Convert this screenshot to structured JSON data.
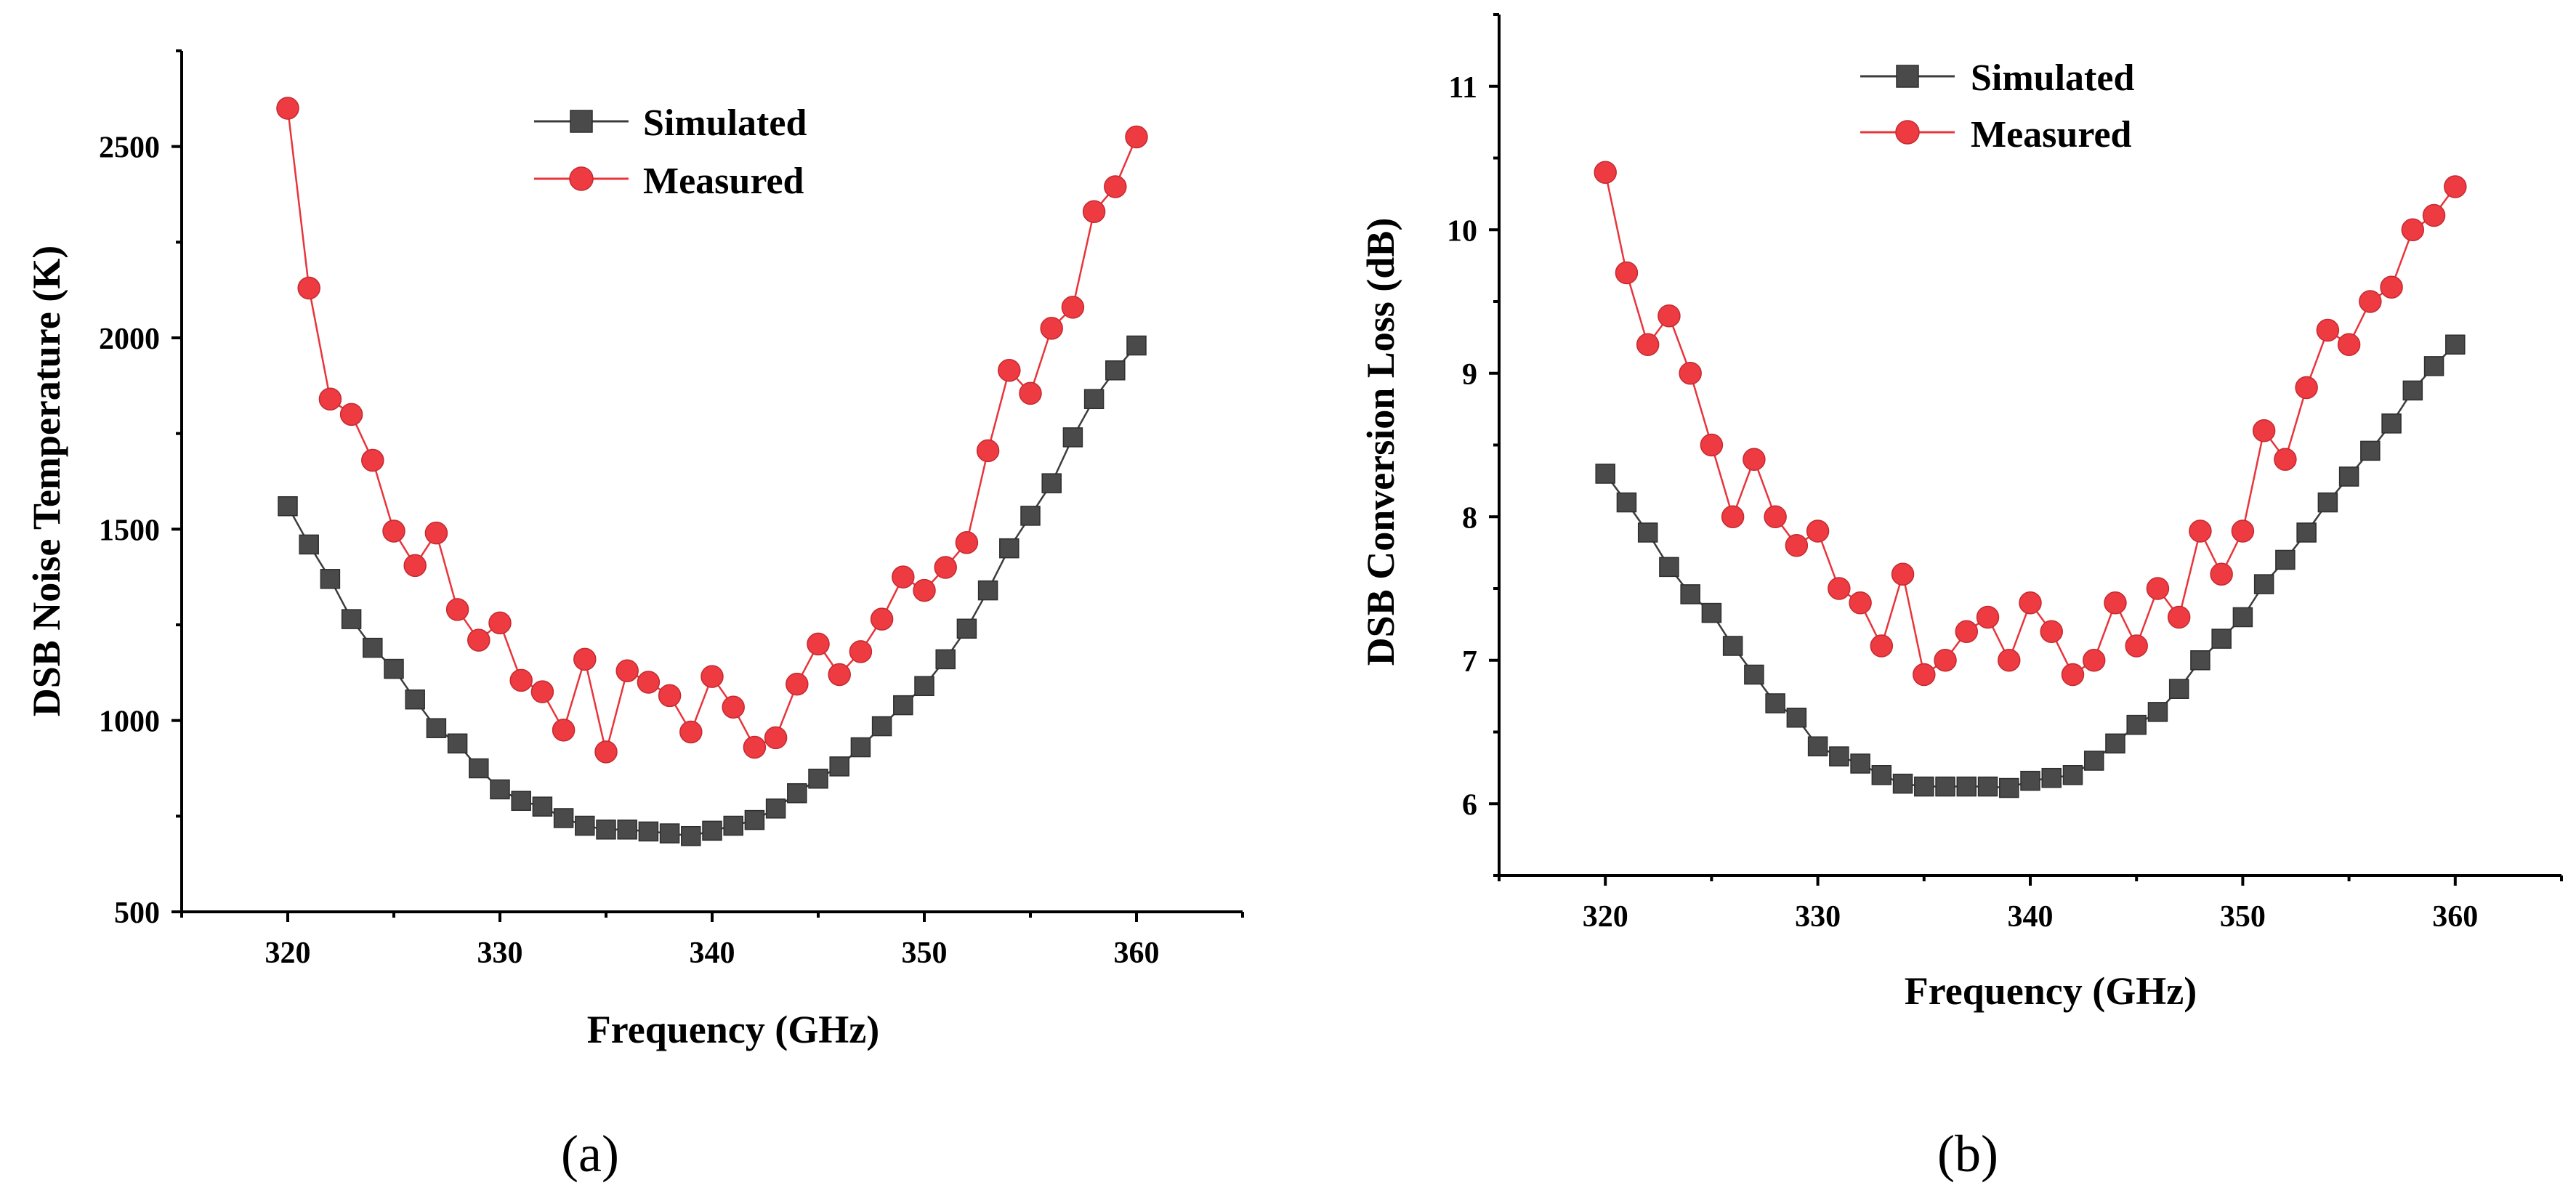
{
  "colors": {
    "simulated": "#4a4a4a",
    "measured": "#ee3b42"
  },
  "chart_data": [
    {
      "type": "line",
      "panel_label": "(a)",
      "xlabel": "Frequency (GHz)",
      "ylabel": "DSB Noise Temperature (K)",
      "xlim": [
        315,
        365
      ],
      "ylim": [
        500,
        2750
      ],
      "xticks": [
        320,
        330,
        340,
        350,
        360
      ],
      "yticks": [
        500,
        1000,
        1500,
        2000,
        2500
      ],
      "legend_position": "top-center",
      "x": [
        320,
        321,
        322,
        323,
        324,
        325,
        326,
        327,
        328,
        329,
        330,
        331,
        332,
        333,
        334,
        335,
        336,
        337,
        338,
        339,
        340,
        341,
        342,
        343,
        344,
        345,
        346,
        347,
        348,
        349,
        350,
        351,
        352,
        353,
        354,
        355,
        356,
        357,
        358,
        359,
        360
      ],
      "series": [
        {
          "name": "Simulated",
          "marker": "square",
          "values": [
            1560,
            1460,
            1370,
            1265,
            1190,
            1135,
            1055,
            980,
            940,
            875,
            820,
            790,
            775,
            745,
            725,
            715,
            715,
            710,
            705,
            698,
            712,
            725,
            740,
            770,
            810,
            848,
            880,
            930,
            985,
            1040,
            1090,
            1160,
            1240,
            1340,
            1450,
            1535,
            1620,
            1740,
            1840,
            1915,
            1980
          ]
        },
        {
          "name": "Measured",
          "marker": "circle",
          "values": [
            2600,
            2130,
            1840,
            1800,
            1680,
            1495,
            1405,
            1490,
            1290,
            1210,
            1255,
            1105,
            1075,
            975,
            1160,
            918,
            1130,
            1100,
            1065,
            970,
            1115,
            1035,
            930,
            955,
            1095,
            1200,
            1120,
            1180,
            1265,
            1375,
            1340,
            1400,
            1465,
            1705,
            1915,
            1855,
            2025,
            2080,
            2330,
            2395,
            2525
          ]
        }
      ]
    },
    {
      "type": "line",
      "panel_label": "(b)",
      "xlabel": "Frequency (GHz)",
      "ylabel": "DSB Conversion Loss (dB)",
      "xlim": [
        315,
        365
      ],
      "ylim": [
        5.5,
        11.5
      ],
      "xticks": [
        320,
        330,
        340,
        350,
        360
      ],
      "yticks": [
        6,
        7,
        8,
        9,
        10,
        11
      ],
      "legend_position": "top-center",
      "x": [
        320,
        321,
        322,
        323,
        324,
        325,
        326,
        327,
        328,
        329,
        330,
        331,
        332,
        333,
        334,
        335,
        336,
        337,
        338,
        339,
        340,
        341,
        342,
        343,
        344,
        345,
        346,
        347,
        348,
        349,
        350,
        351,
        352,
        353,
        354,
        355,
        356,
        357,
        358,
        359,
        360
      ],
      "series": [
        {
          "name": "Simulated",
          "marker": "square",
          "values": [
            8.3,
            8.1,
            7.89,
            7.65,
            7.46,
            7.33,
            7.1,
            6.9,
            6.7,
            6.6,
            6.4,
            6.33,
            6.28,
            6.2,
            6.14,
            6.12,
            6.12,
            6.12,
            6.12,
            6.11,
            6.16,
            6.18,
            6.2,
            6.3,
            6.42,
            6.55,
            6.64,
            6.8,
            7.0,
            7.15,
            7.3,
            7.53,
            7.7,
            7.89,
            8.1,
            8.28,
            8.46,
            8.65,
            8.88,
            9.05,
            9.2
          ]
        },
        {
          "name": "Measured",
          "marker": "circle",
          "values": [
            10.4,
            9.7,
            9.2,
            9.4,
            9.0,
            8.5,
            8.0,
            8.4,
            8.0,
            7.8,
            7.9,
            7.5,
            7.4,
            7.1,
            7.6,
            6.9,
            7.0,
            7.2,
            7.3,
            7.0,
            7.4,
            7.2,
            6.9,
            7.0,
            7.4,
            7.1,
            7.5,
            7.3,
            7.9,
            7.6,
            7.9,
            8.6,
            8.4,
            8.9,
            9.3,
            9.2,
            9.5,
            9.6,
            10.0,
            10.1,
            10.3
          ]
        }
      ]
    }
  ]
}
